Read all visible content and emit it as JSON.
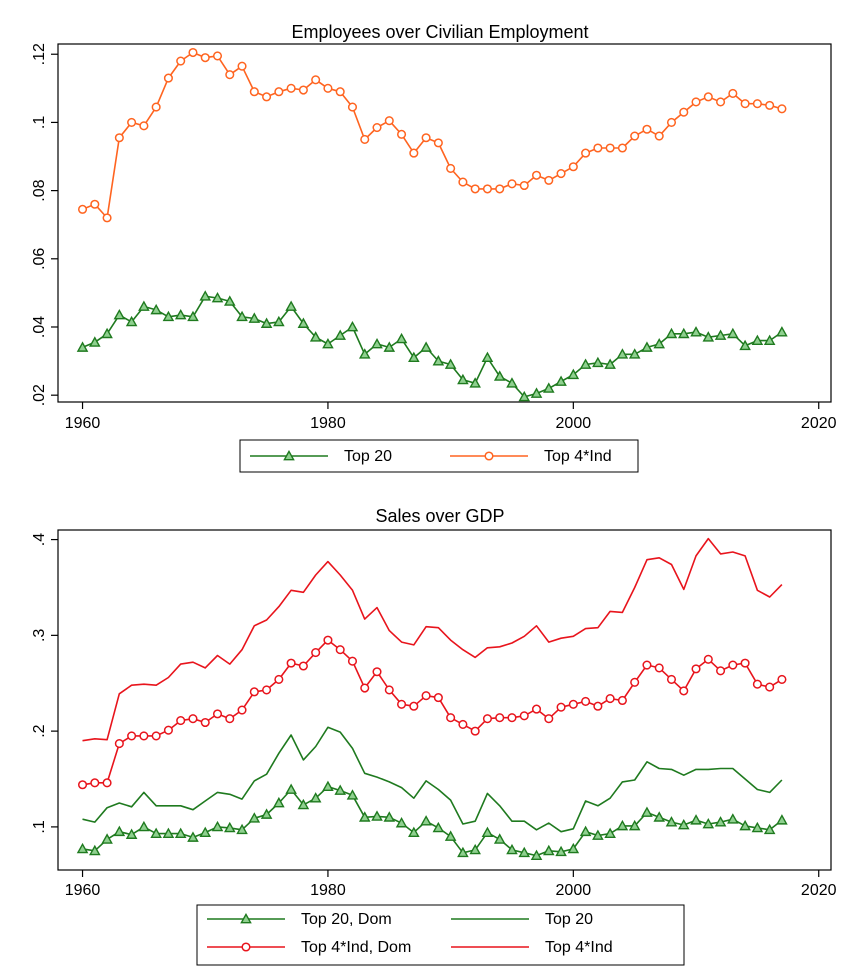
{
  "chart_data": [
    {
      "type": "line",
      "title": "Employees over Civilian Employment",
      "xlabel": "",
      "ylabel": "",
      "xlim": [
        1958,
        2021
      ],
      "ylim": [
        0.018,
        0.123
      ],
      "x_ticks": [
        1960,
        1980,
        2000,
        2020
      ],
      "x_tick_labels": [
        "1960",
        "1980",
        "2000",
        "2020"
      ],
      "y_ticks": [
        0.02,
        0.04,
        0.06,
        0.08,
        0.1,
        0.12
      ],
      "y_tick_labels": [
        ".02",
        ".04",
        ".06",
        ".08",
        ".1",
        ".12"
      ],
      "grid": false,
      "legend_position": "bottom",
      "x": [
        1960,
        1961,
        1962,
        1963,
        1964,
        1965,
        1966,
        1967,
        1968,
        1969,
        1970,
        1971,
        1972,
        1973,
        1974,
        1975,
        1976,
        1977,
        1978,
        1979,
        1980,
        1981,
        1982,
        1983,
        1984,
        1985,
        1986,
        1987,
        1988,
        1989,
        1990,
        1991,
        1992,
        1993,
        1994,
        1995,
        1996,
        1997,
        1998,
        1999,
        2000,
        2001,
        2002,
        2003,
        2004,
        2005,
        2006,
        2007,
        2008,
        2009,
        2010,
        2011,
        2012,
        2013,
        2014,
        2015,
        2016,
        2017
      ],
      "series": [
        {
          "name": "Top 20",
          "color": "#1f7a1f",
          "marker": "triangle",
          "values": [
            0.034,
            0.0355,
            0.038,
            0.0435,
            0.0415,
            0.046,
            0.045,
            0.043,
            0.0435,
            0.043,
            0.049,
            0.0485,
            0.0475,
            0.043,
            0.0425,
            0.041,
            0.0415,
            0.046,
            0.041,
            0.037,
            0.035,
            0.0375,
            0.04,
            0.032,
            0.035,
            0.034,
            0.0365,
            0.031,
            0.034,
            0.03,
            0.029,
            0.0245,
            0.0235,
            0.031,
            0.0255,
            0.0235,
            0.0195,
            0.0205,
            0.022,
            0.024,
            0.026,
            0.029,
            0.0295,
            0.029,
            0.032,
            0.032,
            0.034,
            0.035,
            0.038,
            0.038,
            0.0385,
            0.037,
            0.0375,
            0.038,
            0.0345,
            0.036,
            0.036,
            0.0385
          ]
        },
        {
          "name": "Top 4*Ind",
          "color": "#ff6420",
          "marker": "circle",
          "values": [
            0.0745,
            0.076,
            0.072,
            0.0955,
            0.1,
            0.099,
            0.1045,
            0.113,
            0.118,
            0.1205,
            0.119,
            0.1195,
            0.114,
            0.1165,
            0.109,
            0.1075,
            0.109,
            0.11,
            0.1095,
            0.1125,
            0.11,
            0.109,
            0.1045,
            0.095,
            0.0985,
            0.1005,
            0.0965,
            0.091,
            0.0955,
            0.094,
            0.0865,
            0.0825,
            0.0805,
            0.0805,
            0.0805,
            0.082,
            0.0815,
            0.0845,
            0.083,
            0.085,
            0.087,
            0.091,
            0.0925,
            0.0925,
            0.0925,
            0.096,
            0.098,
            0.096,
            0.1,
            0.103,
            0.106,
            0.1075,
            0.106,
            0.1085,
            0.1055,
            0.1055,
            0.105,
            0.104
          ]
        }
      ]
    },
    {
      "type": "line",
      "title": "Sales over GDP",
      "xlabel": "",
      "ylabel": "",
      "xlim": [
        1958,
        2021
      ],
      "ylim": [
        0.055,
        0.41
      ],
      "x_ticks": [
        1960,
        1980,
        2000,
        2020
      ],
      "x_tick_labels": [
        "1960",
        "1980",
        "2000",
        "2020"
      ],
      "y_ticks": [
        0.1,
        0.2,
        0.3,
        0.4
      ],
      "y_tick_labels": [
        ".1",
        ".2",
        ".3",
        ".4"
      ],
      "grid": false,
      "legend_position": "bottom",
      "x": [
        1960,
        1961,
        1962,
        1963,
        1964,
        1965,
        1966,
        1967,
        1968,
        1969,
        1970,
        1971,
        1972,
        1973,
        1974,
        1975,
        1976,
        1977,
        1978,
        1979,
        1980,
        1981,
        1982,
        1983,
        1984,
        1985,
        1986,
        1987,
        1988,
        1989,
        1990,
        1991,
        1992,
        1993,
        1994,
        1995,
        1996,
        1997,
        1998,
        1999,
        2000,
        2001,
        2002,
        2003,
        2004,
        2005,
        2006,
        2007,
        2008,
        2009,
        2010,
        2011,
        2012,
        2013,
        2014,
        2015,
        2016,
        2017
      ],
      "series": [
        {
          "name": "Top 20, Dom",
          "color": "#1f7a1f",
          "marker": "triangle",
          "values": [
            0.077,
            0.075,
            0.087,
            0.095,
            0.092,
            0.1,
            0.093,
            0.093,
            0.093,
            0.089,
            0.094,
            0.1,
            0.099,
            0.097,
            0.109,
            0.113,
            0.125,
            0.139,
            0.123,
            0.13,
            0.142,
            0.138,
            0.133,
            0.11,
            0.111,
            0.11,
            0.104,
            0.094,
            0.106,
            0.099,
            0.09,
            0.073,
            0.076,
            0.094,
            0.087,
            0.076,
            0.073,
            0.07,
            0.075,
            0.074,
            0.077,
            0.095,
            0.091,
            0.093,
            0.101,
            0.101,
            0.115,
            0.11,
            0.105,
            0.102,
            0.107,
            0.103,
            0.105,
            0.108,
            0.101,
            0.099,
            0.097,
            0.107
          ]
        },
        {
          "name": "Top 20",
          "color": "#1f7a1f",
          "marker": "none",
          "values": [
            0.108,
            0.105,
            0.12,
            0.125,
            0.121,
            0.136,
            0.122,
            0.122,
            0.122,
            0.118,
            0.127,
            0.136,
            0.134,
            0.129,
            0.148,
            0.155,
            0.177,
            0.196,
            0.17,
            0.184,
            0.204,
            0.199,
            0.182,
            0.156,
            0.152,
            0.147,
            0.141,
            0.13,
            0.148,
            0.139,
            0.128,
            0.103,
            0.106,
            0.135,
            0.122,
            0.106,
            0.106,
            0.097,
            0.104,
            0.095,
            0.098,
            0.127,
            0.122,
            0.13,
            0.147,
            0.149,
            0.168,
            0.161,
            0.16,
            0.154,
            0.16,
            0.16,
            0.161,
            0.161,
            0.15,
            0.139,
            0.136,
            0.149
          ]
        },
        {
          "name": "Top 4*Ind, Dom",
          "color": "#e8141c",
          "marker": "circle",
          "values": [
            0.144,
            0.146,
            0.146,
            0.187,
            0.195,
            0.195,
            0.195,
            0.201,
            0.211,
            0.213,
            0.209,
            0.218,
            0.213,
            0.222,
            0.241,
            0.243,
            0.254,
            0.271,
            0.268,
            0.282,
            0.295,
            0.285,
            0.273,
            0.245,
            0.262,
            0.243,
            0.228,
            0.226,
            0.237,
            0.235,
            0.214,
            0.207,
            0.2,
            0.213,
            0.214,
            0.214,
            0.216,
            0.223,
            0.213,
            0.225,
            0.228,
            0.231,
            0.226,
            0.234,
            0.232,
            0.251,
            0.269,
            0.266,
            0.254,
            0.242,
            0.265,
            0.275,
            0.263,
            0.269,
            0.271,
            0.249,
            0.246,
            0.254
          ]
        },
        {
          "name": "Top 4*Ind",
          "color": "#e8141c",
          "marker": "none",
          "values": [
            0.19,
            0.192,
            0.191,
            0.239,
            0.248,
            0.249,
            0.248,
            0.256,
            0.27,
            0.272,
            0.266,
            0.279,
            0.27,
            0.285,
            0.31,
            0.316,
            0.33,
            0.347,
            0.345,
            0.363,
            0.377,
            0.363,
            0.347,
            0.317,
            0.329,
            0.305,
            0.293,
            0.29,
            0.309,
            0.308,
            0.295,
            0.285,
            0.277,
            0.287,
            0.288,
            0.292,
            0.299,
            0.31,
            0.293,
            0.297,
            0.299,
            0.307,
            0.308,
            0.325,
            0.324,
            0.35,
            0.379,
            0.381,
            0.374,
            0.348,
            0.383,
            0.401,
            0.385,
            0.387,
            0.383,
            0.347,
            0.34,
            0.353
          ]
        }
      ]
    }
  ]
}
